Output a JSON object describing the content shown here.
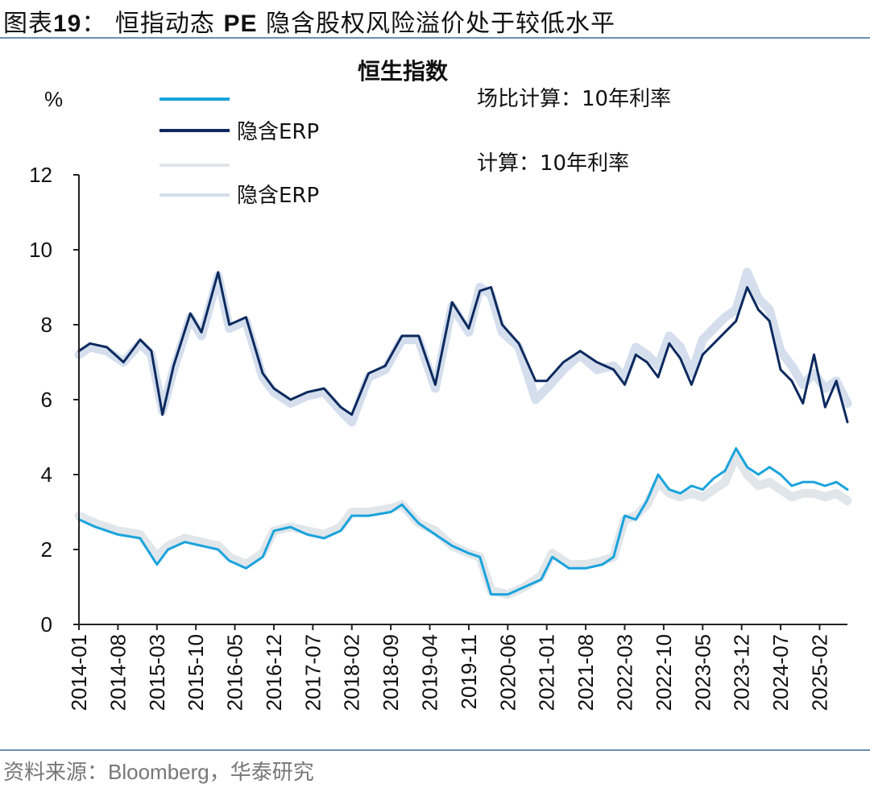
{
  "header": {
    "title_prefix": "图表",
    "title_num": "19",
    "title_rest": "： 恒指动态 ",
    "title_pe": "PE",
    "title_suffix": " 隐含股权风险溢价处于较低水平"
  },
  "footer": {
    "source_prefix": "资料来源：",
    "source_en": "Bloomberg",
    "source_suffix": "，华泰研究"
  },
  "chart_data": {
    "type": "line",
    "title": "恒生指数",
    "ylabel": "%",
    "ylim": [
      0,
      12
    ],
    "yticks": [
      "0",
      "2",
      "4",
      "6",
      "8",
      "10",
      "12"
    ],
    "xticks": [
      "2014-01",
      "2014-08",
      "2015-03",
      "2015-10",
      "2016-05",
      "2016-12",
      "2017-07",
      "2018-02",
      "2018-09",
      "2019-04",
      "2019-11",
      "2020-06",
      "2021-01",
      "2021-08",
      "2022-03",
      "2022-10",
      "2023-05",
      "2023-12",
      "2024-07",
      "2025-02"
    ],
    "xrange": [
      "2014-01",
      "2025-07"
    ],
    "grid": false,
    "legend_position": "top",
    "colors": {
      "rate_a": "#1aa3dc",
      "erp_a": "#0d2a5e",
      "rate_b": "#e1e6ea",
      "erp_b": "#d4deed"
    },
    "series": [
      {
        "name": "场比计算：10年利率",
        "key": "rate_a",
        "width": 3,
        "x": [
          "2014-01",
          "2014-04",
          "2014-08",
          "2014-12",
          "2015-03",
          "2015-05",
          "2015-08",
          "2015-11",
          "2016-02",
          "2016-04",
          "2016-07",
          "2016-10",
          "2016-12",
          "2017-03",
          "2017-06",
          "2017-09",
          "2017-12",
          "2018-02",
          "2018-05",
          "2018-09",
          "2018-11",
          "2019-02",
          "2019-05",
          "2019-08",
          "2019-11",
          "2020-01",
          "2020-03",
          "2020-06",
          "2020-09",
          "2020-12",
          "2021-02",
          "2021-05",
          "2021-08",
          "2021-11",
          "2022-01",
          "2022-03",
          "2022-05",
          "2022-07",
          "2022-09",
          "2022-11",
          "2023-01",
          "2023-03",
          "2023-05",
          "2023-07",
          "2023-09",
          "2023-11",
          "2024-01",
          "2024-03",
          "2024-05",
          "2024-07",
          "2024-09",
          "2024-11",
          "2025-01",
          "2025-03",
          "2025-05",
          "2025-07"
        ],
        "y": [
          2.8,
          2.6,
          2.4,
          2.3,
          1.6,
          2.0,
          2.2,
          2.1,
          2.0,
          1.7,
          1.5,
          1.8,
          2.5,
          2.6,
          2.4,
          2.3,
          2.5,
          2.9,
          2.9,
          3.0,
          3.2,
          2.7,
          2.4,
          2.1,
          1.9,
          1.8,
          0.8,
          0.8,
          1.0,
          1.2,
          1.8,
          1.5,
          1.5,
          1.6,
          1.8,
          2.9,
          2.8,
          3.3,
          4.0,
          3.6,
          3.5,
          3.7,
          3.6,
          3.9,
          4.1,
          4.7,
          4.2,
          4.0,
          4.2,
          4.0,
          3.7,
          3.8,
          3.8,
          3.7,
          3.8,
          3.6
        ]
      },
      {
        "name": "隐含ERP",
        "key": "erp_a",
        "width": 3,
        "x": [
          "2014-01",
          "2014-03",
          "2014-06",
          "2014-09",
          "2014-12",
          "2015-02",
          "2015-04",
          "2015-06",
          "2015-09",
          "2015-11",
          "2016-02",
          "2016-04",
          "2016-07",
          "2016-10",
          "2016-12",
          "2017-03",
          "2017-06",
          "2017-09",
          "2017-12",
          "2018-02",
          "2018-05",
          "2018-08",
          "2018-11",
          "2019-02",
          "2019-05",
          "2019-08",
          "2019-11",
          "2020-01",
          "2020-03",
          "2020-05",
          "2020-08",
          "2020-11",
          "2021-01",
          "2021-04",
          "2021-07",
          "2021-10",
          "2022-01",
          "2022-03",
          "2022-05",
          "2022-07",
          "2022-09",
          "2022-11",
          "2023-01",
          "2023-03",
          "2023-05",
          "2023-07",
          "2023-09",
          "2023-11",
          "2024-01",
          "2024-03",
          "2024-05",
          "2024-07",
          "2024-09",
          "2024-11",
          "2025-01",
          "2025-03",
          "2025-05",
          "2025-07"
        ],
        "y": [
          7.3,
          7.5,
          7.4,
          7.0,
          7.6,
          7.3,
          5.6,
          6.9,
          8.3,
          7.8,
          9.4,
          8.0,
          8.2,
          6.7,
          6.3,
          6.0,
          6.2,
          6.3,
          5.8,
          5.6,
          6.7,
          6.9,
          7.7,
          7.7,
          6.4,
          8.6,
          7.9,
          8.9,
          9.0,
          8.0,
          7.5,
          6.5,
          6.5,
          7.0,
          7.3,
          7.0,
          6.8,
          6.4,
          7.2,
          7.0,
          6.6,
          7.5,
          7.1,
          6.4,
          7.2,
          7.5,
          7.8,
          8.1,
          9.0,
          8.4,
          8.1,
          6.8,
          6.5,
          5.9,
          7.2,
          5.8,
          6.5,
          5.4
        ]
      },
      {
        "name": "计算：10年利率",
        "key": "rate_b",
        "width": 11,
        "x": [
          "2014-01",
          "2014-04",
          "2014-08",
          "2014-12",
          "2015-03",
          "2015-05",
          "2015-08",
          "2015-11",
          "2016-02",
          "2016-04",
          "2016-07",
          "2016-10",
          "2016-12",
          "2017-03",
          "2017-06",
          "2017-09",
          "2017-12",
          "2018-02",
          "2018-05",
          "2018-09",
          "2018-11",
          "2019-02",
          "2019-05",
          "2019-08",
          "2019-11",
          "2020-01",
          "2020-03",
          "2020-06",
          "2020-09",
          "2020-12",
          "2021-02",
          "2021-05",
          "2021-08",
          "2021-11",
          "2022-01",
          "2022-03",
          "2022-05",
          "2022-07",
          "2022-09",
          "2022-11",
          "2023-01",
          "2023-03",
          "2023-05",
          "2023-07",
          "2023-09",
          "2023-11",
          "2024-01",
          "2024-03",
          "2024-05",
          "2024-07",
          "2024-09",
          "2024-11",
          "2025-01",
          "2025-03",
          "2025-05",
          "2025-07"
        ],
        "y": [
          2.9,
          2.7,
          2.5,
          2.4,
          1.8,
          2.1,
          2.3,
          2.2,
          2.1,
          1.8,
          1.6,
          1.9,
          2.5,
          2.6,
          2.5,
          2.4,
          2.6,
          3.0,
          3.0,
          3.1,
          3.2,
          2.7,
          2.5,
          2.1,
          1.9,
          1.8,
          0.9,
          0.8,
          1.0,
          1.3,
          1.9,
          1.6,
          1.6,
          1.7,
          1.8,
          2.8,
          2.9,
          3.2,
          3.8,
          3.5,
          3.4,
          3.5,
          3.4,
          3.6,
          3.8,
          4.5,
          4.0,
          3.7,
          3.8,
          3.6,
          3.4,
          3.5,
          3.5,
          3.4,
          3.5,
          3.3
        ]
      },
      {
        "name": "隐含ERP",
        "key": "erp_b",
        "width": 11,
        "x": [
          "2014-01",
          "2014-03",
          "2014-06",
          "2014-09",
          "2014-12",
          "2015-02",
          "2015-04",
          "2015-06",
          "2015-09",
          "2015-11",
          "2016-02",
          "2016-04",
          "2016-07",
          "2016-10",
          "2016-12",
          "2017-03",
          "2017-06",
          "2017-09",
          "2017-12",
          "2018-02",
          "2018-05",
          "2018-08",
          "2018-11",
          "2019-02",
          "2019-05",
          "2019-08",
          "2019-11",
          "2020-01",
          "2020-03",
          "2020-05",
          "2020-08",
          "2020-11",
          "2021-01",
          "2021-04",
          "2021-07",
          "2021-10",
          "2022-01",
          "2022-03",
          "2022-05",
          "2022-07",
          "2022-09",
          "2022-11",
          "2023-01",
          "2023-03",
          "2023-05",
          "2023-07",
          "2023-09",
          "2023-11",
          "2024-01",
          "2024-03",
          "2024-05",
          "2024-07",
          "2024-09",
          "2024-11",
          "2025-01",
          "2025-03",
          "2025-05",
          "2025-07"
        ],
        "y": [
          7.2,
          7.4,
          7.3,
          7.0,
          7.5,
          7.2,
          5.7,
          6.8,
          8.2,
          7.7,
          9.3,
          7.9,
          8.1,
          6.6,
          6.2,
          5.9,
          6.1,
          6.2,
          5.7,
          5.4,
          6.6,
          6.8,
          7.6,
          7.6,
          6.3,
          8.5,
          7.8,
          9.0,
          8.8,
          7.8,
          7.4,
          6.0,
          6.3,
          6.8,
          7.2,
          6.8,
          6.9,
          6.6,
          7.4,
          7.2,
          6.9,
          7.7,
          7.4,
          6.7,
          7.6,
          7.9,
          8.2,
          8.4,
          9.4,
          8.7,
          8.4,
          7.3,
          6.9,
          6.4,
          6.7,
          6.3,
          6.5,
          5.9
        ]
      }
    ]
  }
}
